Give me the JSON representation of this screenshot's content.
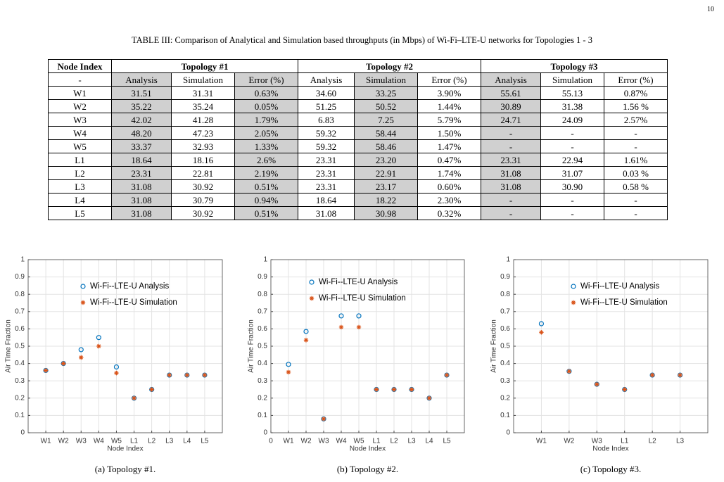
{
  "page_number": "10",
  "table": {
    "caption": "TABLE III: Comparison of Analytical and Simulation based throughputs (in Mbps) of Wi-Fi–LTE-U networks for Topologies 1 - 3",
    "header": [
      "Node Index",
      "Topology #1",
      "Topology #2",
      "Topology #3"
    ],
    "subheader": [
      "-",
      "Analysis",
      "Simulation",
      "Error (%)",
      "Analysis",
      "Simulation",
      "Error (%)",
      "Analysis",
      "Simulation",
      "Error (%)"
    ],
    "rows": [
      [
        "W1",
        "31.51",
        "31.31",
        "0.63%",
        "34.60",
        "33.25",
        "3.90%",
        "55.61",
        "55.13",
        "0.87%"
      ],
      [
        "W2",
        "35.22",
        "35.24",
        "0.05%",
        "51.25",
        "50.52",
        "1.44%",
        "30.89",
        "31.38",
        "1.56 %"
      ],
      [
        "W3",
        "42.02",
        "41.28",
        "1.79%",
        "6.83",
        "7.25",
        "5.79%",
        "24.71",
        "24.09",
        "2.57%"
      ],
      [
        "W4",
        "48.20",
        "47.23",
        "2.05%",
        "59.32",
        "58.44",
        "1.50%",
        "-",
        "-",
        "-"
      ],
      [
        "W5",
        "33.37",
        "32.93",
        "1.33%",
        "59.32",
        "58.46",
        "1.47%",
        "-",
        "-",
        "-"
      ],
      [
        "L1",
        "18.64",
        "18.16",
        "2.6%",
        "23.31",
        "23.20",
        "0.47%",
        "23.31",
        "22.94",
        "1.61%"
      ],
      [
        "L2",
        "23.31",
        "22.81",
        "2.19%",
        "23.31",
        "22.91",
        "1.74%",
        "31.08",
        "31.07",
        "0.03 %"
      ],
      [
        "L3",
        "31.08",
        "30.92",
        "0.51%",
        "23.31",
        "23.17",
        "0.60%",
        "31.08",
        "30.90",
        "0.58 %"
      ],
      [
        "L4",
        "31.08",
        "30.79",
        "0.94%",
        "18.64",
        "18.22",
        "2.30%",
        "-",
        "-",
        "-"
      ],
      [
        "L5",
        "31.08",
        "30.92",
        "0.51%",
        "31.08",
        "30.98",
        "0.32%",
        "-",
        "-",
        "-"
      ]
    ]
  },
  "chart_data": [
    {
      "type": "scatter",
      "caption": "(a) Topology #1.",
      "xlabel": "Node Index",
      "ylabel": "Air Time Fraction",
      "x": [
        1,
        2,
        3,
        4,
        5,
        6,
        7,
        8,
        9,
        10
      ],
      "xlim": [
        0,
        11
      ],
      "ylim": [
        0,
        1
      ],
      "grid": true,
      "xticks": [
        {
          "value": 1,
          "label": "W1"
        },
        {
          "value": 2,
          "label": "W2"
        },
        {
          "value": 3,
          "label": "W3"
        },
        {
          "value": 4,
          "label": "W4"
        },
        {
          "value": 5,
          "label": "W5"
        },
        {
          "value": 6,
          "label": "L1"
        },
        {
          "value": 7,
          "label": "L2"
        },
        {
          "value": 8,
          "label": "L3"
        },
        {
          "value": 9,
          "label": "L4"
        },
        {
          "value": 10,
          "label": "L5"
        }
      ],
      "yticks": [
        0,
        0.1,
        0.2,
        0.3,
        0.4,
        0.5,
        0.6,
        0.7,
        0.8,
        0.9,
        1
      ],
      "series": [
        {
          "name": "Wi-Fi--LTE-U Analysis",
          "color": "#0072bd",
          "marker": "circle",
          "values": [
            0.36,
            0.4,
            0.48,
            0.55,
            0.38,
            0.2,
            0.25,
            0.333,
            0.333,
            0.333
          ]
        },
        {
          "name": "Wi-Fi--LTE-U Simulation",
          "color": "#d95319",
          "marker": "asterisk",
          "values": [
            0.36,
            0.4,
            0.435,
            0.5,
            0.345,
            0.2,
            0.25,
            0.333,
            0.333,
            0.333
          ]
        }
      ]
    },
    {
      "type": "scatter",
      "caption": "(b) Topology #2.",
      "xlabel": "Node Index",
      "ylabel": "Air Time Fraction",
      "x": [
        1,
        2,
        3,
        4,
        5,
        6,
        7,
        8,
        9,
        10
      ],
      "xlim": [
        0,
        11
      ],
      "ylim": [
        0,
        1
      ],
      "grid": true,
      "xticks": [
        0,
        {
          "value": 1,
          "label": "W1"
        },
        {
          "value": 2,
          "label": "W2"
        },
        {
          "value": 3,
          "label": "W3"
        },
        {
          "value": 4,
          "label": "W4"
        },
        {
          "value": 5,
          "label": "W5"
        },
        {
          "value": 6,
          "label": "L1"
        },
        {
          "value": 7,
          "label": "L2"
        },
        {
          "value": 8,
          "label": "L3"
        },
        {
          "value": 9,
          "label": "L4"
        },
        {
          "value": 10,
          "label": "L5"
        }
      ],
      "yticks": [
        0,
        0.1,
        0.2,
        0.3,
        0.4,
        0.5,
        0.6,
        0.7,
        0.8,
        0.9,
        1
      ],
      "series": [
        {
          "name": "Wi-Fi--LTE-U Analysis",
          "color": "#0072bd",
          "marker": "circle",
          "values": [
            0.395,
            0.585,
            0.08,
            0.675,
            0.675,
            0.25,
            0.25,
            0.25,
            0.2,
            0.333
          ]
        },
        {
          "name": "Wi-Fi--LTE-U Simulation",
          "color": "#d95319",
          "marker": "asterisk",
          "values": [
            0.35,
            0.535,
            0.08,
            0.61,
            0.61,
            0.25,
            0.25,
            0.25,
            0.2,
            0.333
          ]
        }
      ]
    },
    {
      "type": "scatter",
      "caption": "(c) Topology #3.",
      "xlabel": "Node Index",
      "ylabel": "Air Time Fraction",
      "x": [
        1,
        2,
        3,
        4,
        5,
        6
      ],
      "xlim": [
        0,
        7
      ],
      "ylim": [
        0,
        1
      ],
      "grid": true,
      "xticks": [
        {
          "value": 1,
          "label": "W1"
        },
        {
          "value": 2,
          "label": "W2"
        },
        {
          "value": 3,
          "label": "W3"
        },
        {
          "value": 4,
          "label": "L1"
        },
        {
          "value": 5,
          "label": "L2"
        },
        {
          "value": 6,
          "label": "L3"
        }
      ],
      "yticks": [
        0,
        0.1,
        0.2,
        0.3,
        0.4,
        0.5,
        0.6,
        0.7,
        0.8,
        0.9,
        1
      ],
      "series": [
        {
          "name": "Wi-Fi--LTE-U Analysis",
          "color": "#0072bd",
          "marker": "circle",
          "values": [
            0.63,
            0.355,
            0.28,
            0.25,
            0.333,
            0.333
          ]
        },
        {
          "name": "Wi-Fi--LTE-U Simulation",
          "color": "#d95319",
          "marker": "asterisk",
          "values": [
            0.58,
            0.355,
            0.28,
            0.25,
            0.333,
            0.333
          ]
        }
      ]
    }
  ]
}
